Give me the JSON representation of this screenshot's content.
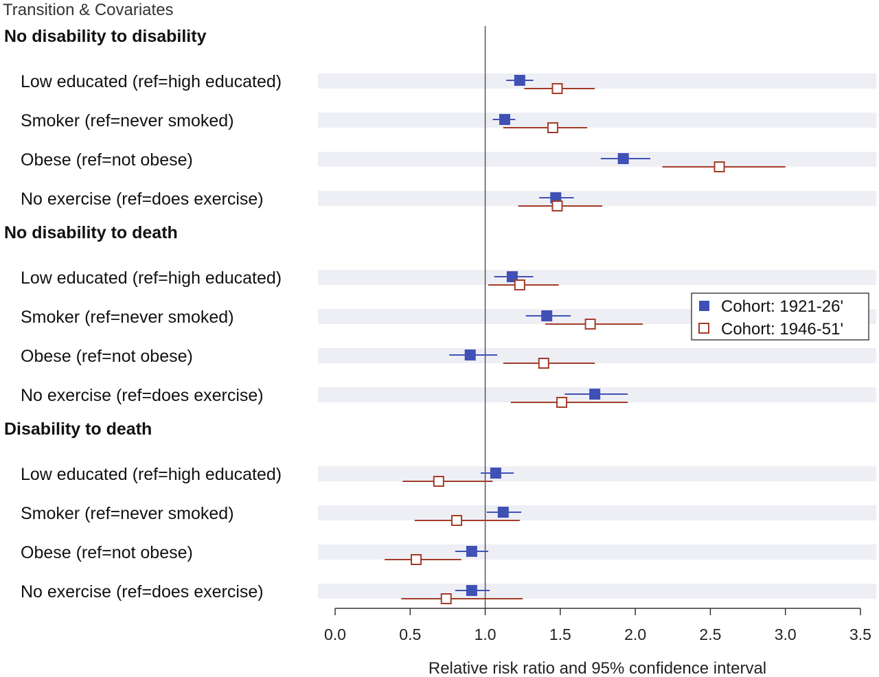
{
  "chart_data": {
    "type": "forest",
    "header": "Transition & Covariates",
    "xlabel": "Relative risk ratio and 95% confidence interval",
    "xlim": [
      0.0,
      3.5
    ],
    "xticks": [
      "0.0",
      "0.5",
      "1.0",
      "1.5",
      "2.0",
      "2.5",
      "3.0",
      "3.5"
    ],
    "reference_line": 1.0,
    "legend": [
      {
        "name": "Cohort: 1921-26'",
        "marker": "filled-square",
        "color": "#3f51b5"
      },
      {
        "name": "Cohort: 1946-51'",
        "marker": "open-square",
        "color": "#a23b28"
      }
    ],
    "groups": [
      {
        "title": "No disability to disability",
        "rows": [
          {
            "label": "Low educated (ref=high educated)",
            "c1921": {
              "est": 1.23,
              "lo": 1.14,
              "hi": 1.32
            },
            "c1946": {
              "est": 1.48,
              "lo": 1.26,
              "hi": 1.73
            }
          },
          {
            "label": "Smoker (ref=never smoked)",
            "c1921": {
              "est": 1.13,
              "lo": 1.05,
              "hi": 1.2
            },
            "c1946": {
              "est": 1.45,
              "lo": 1.12,
              "hi": 1.68
            }
          },
          {
            "label": "Obese (ref=not obese)",
            "c1921": {
              "est": 1.92,
              "lo": 1.77,
              "hi": 2.1
            },
            "c1946": {
              "est": 2.56,
              "lo": 2.18,
              "hi": 3.0
            }
          },
          {
            "label": "No exercise (ref=does exercise)",
            "c1921": {
              "est": 1.47,
              "lo": 1.36,
              "hi": 1.59
            },
            "c1946": {
              "est": 1.48,
              "lo": 1.22,
              "hi": 1.78
            }
          }
        ]
      },
      {
        "title": "No disability to death",
        "rows": [
          {
            "label": "Low educated (ref=high educated)",
            "c1921": {
              "est": 1.18,
              "lo": 1.06,
              "hi": 1.32
            },
            "c1946": {
              "est": 1.23,
              "lo": 1.02,
              "hi": 1.49
            }
          },
          {
            "label": "Smoker (ref=never smoked)",
            "c1921": {
              "est": 1.41,
              "lo": 1.27,
              "hi": 1.57
            },
            "c1946": {
              "est": 1.7,
              "lo": 1.4,
              "hi": 2.05
            }
          },
          {
            "label": "Obese (ref=not obese)",
            "c1921": {
              "est": 0.9,
              "lo": 0.76,
              "hi": 1.08
            },
            "c1946": {
              "est": 1.39,
              "lo": 1.12,
              "hi": 1.73
            }
          },
          {
            "label": "No exercise (ref=does exercise)",
            "c1921": {
              "est": 1.73,
              "lo": 1.53,
              "hi": 1.95
            },
            "c1946": {
              "est": 1.51,
              "lo": 1.17,
              "hi": 1.95
            }
          }
        ]
      },
      {
        "title": "Disability to death",
        "rows": [
          {
            "label": "Low educated (ref=high educated)",
            "c1921": {
              "est": 1.07,
              "lo": 0.97,
              "hi": 1.19
            },
            "c1946": {
              "est": 0.69,
              "lo": 0.45,
              "hi": 1.05
            }
          },
          {
            "label": "Smoker (ref=never smoked)",
            "c1921": {
              "est": 1.12,
              "lo": 1.01,
              "hi": 1.24
            },
            "c1946": {
              "est": 0.81,
              "lo": 0.53,
              "hi": 1.23
            }
          },
          {
            "label": "Obese (ref=not obese)",
            "c1921": {
              "est": 0.91,
              "lo": 0.8,
              "hi": 1.02
            },
            "c1946": {
              "est": 0.54,
              "lo": 0.33,
              "hi": 0.84
            }
          },
          {
            "label": "No exercise (ref=does exercise)",
            "c1921": {
              "est": 0.91,
              "lo": 0.8,
              "hi": 1.03
            },
            "c1946": {
              "est": 0.74,
              "lo": 0.44,
              "hi": 1.25
            }
          }
        ]
      }
    ]
  }
}
